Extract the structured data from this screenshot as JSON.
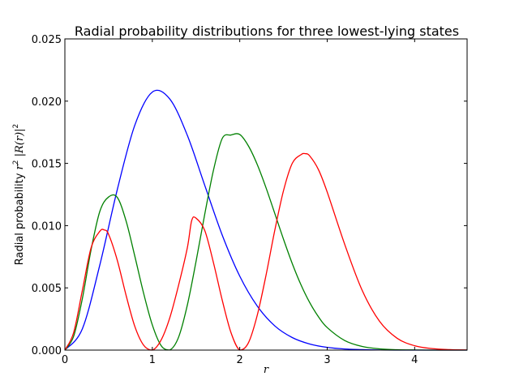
{
  "chart_data": {
    "type": "line",
    "title": "Radial probability distributions for three lowest-lying states",
    "xlabel": "r",
    "ylabel": {
      "prefix": "Radial probability ",
      "r": "r",
      "sq1": "2",
      "mid": " |",
      "R": "R",
      "paren": "(r)|",
      "sq2": "2"
    },
    "xlim": [
      0,
      4.6
    ],
    "ylim": [
      0,
      0.025
    ],
    "xticks": [
      0,
      1,
      2,
      3,
      4
    ],
    "xtick_labels": [
      "0",
      "1",
      "2",
      "3",
      "4"
    ],
    "yticks": [
      0,
      0.005,
      0.01,
      0.015,
      0.02,
      0.025
    ],
    "ytick_labels": [
      "0.000",
      "0.005",
      "0.010",
      "0.015",
      "0.020",
      "0.025"
    ],
    "grid": false,
    "legend": "none",
    "series": [
      {
        "color": "#0000ff",
        "x": [
          0,
          0.2,
          0.4,
          0.6,
          0.8,
          1.0,
          1.2,
          1.4,
          1.6,
          1.8,
          2.0,
          2.2,
          2.4,
          2.6,
          2.8,
          3.0,
          3.2,
          3.4,
          3.6,
          3.8,
          4.0,
          4.2,
          4.4,
          4.6
        ],
        "y": [
          0,
          0.00171,
          0.00685,
          0.01291,
          0.01807,
          0.02073,
          0.02017,
          0.01726,
          0.01323,
          0.00923,
          0.00594,
          0.00354,
          0.00195,
          0.00101,
          0.00049,
          0.00022,
          9e-05,
          4e-05,
          1e-05,
          0,
          0,
          0,
          0,
          0
        ]
      },
      {
        "color": "#008000",
        "x": [
          0,
          0.1,
          0.2,
          0.3,
          0.4,
          0.5,
          0.6,
          0.7,
          0.8,
          0.9,
          1.0,
          1.1,
          1.2,
          1.3,
          1.4,
          1.5,
          1.6,
          1.7,
          1.8,
          1.9,
          2.0,
          2.1,
          2.2,
          2.3,
          2.4,
          2.5,
          2.6,
          2.7,
          2.8,
          2.9,
          3.0,
          3.2,
          3.4,
          3.6,
          3.8,
          4.0,
          4.2,
          4.4,
          4.6
        ],
        "y": [
          0,
          0.0011,
          0.00414,
          0.00807,
          0.01115,
          0.0123,
          0.01226,
          0.01037,
          0.00754,
          0.00458,
          0.00202,
          0.00037,
          1e-05,
          0.00103,
          0.0036,
          0.00712,
          0.01093,
          0.01447,
          0.01701,
          0.01728,
          0.01732,
          0.01639,
          0.01491,
          0.01305,
          0.01099,
          0.00891,
          0.00696,
          0.00525,
          0.00382,
          0.00268,
          0.00181,
          0.00077,
          0.00029,
          0.0001,
          3e-05,
          1e-05,
          0,
          0,
          0
        ]
      },
      {
        "color": "#ff0000",
        "x": [
          0,
          0.1,
          0.2,
          0.3,
          0.4,
          0.45,
          0.5,
          0.6,
          0.7,
          0.8,
          0.9,
          1.0,
          1.1,
          1.2,
          1.3,
          1.4,
          1.45,
          1.5,
          1.6,
          1.7,
          1.8,
          1.9,
          2.0,
          2.1,
          2.2,
          2.3,
          2.4,
          2.5,
          2.6,
          2.7,
          2.75,
          2.8,
          2.9,
          3.0,
          3.2,
          3.4,
          3.6,
          3.8,
          4.0,
          4.2,
          4.4,
          4.6
        ],
        "y": [
          0,
          0.0014,
          0.0048,
          0.00822,
          0.00955,
          0.00965,
          0.0093,
          0.0072,
          0.0044,
          0.0019,
          0.0004,
          0.0,
          0.0008,
          0.0026,
          0.0052,
          0.0082,
          0.0104,
          0.0106,
          0.0096,
          0.007,
          0.004,
          0.0014,
          0.0,
          0.0006,
          0.0028,
          0.006,
          0.0096,
          0.0128,
          0.015,
          0.0157,
          0.01578,
          0.0156,
          0.0145,
          0.0127,
          0.0085,
          0.0048,
          0.0023,
          0.00095,
          0.00035,
          0.00012,
          4e-05,
          1e-05
        ]
      }
    ]
  }
}
